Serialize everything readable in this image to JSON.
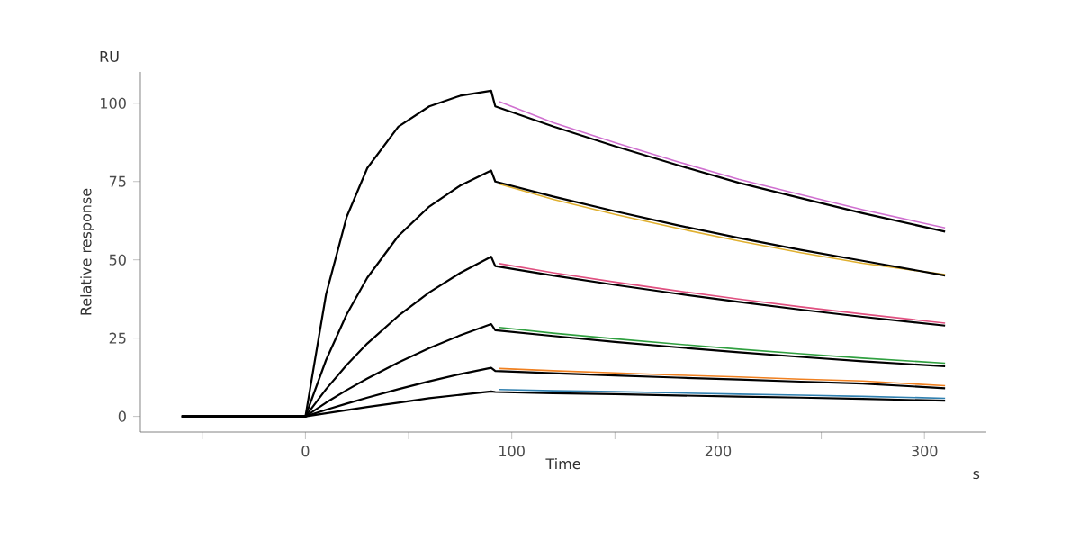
{
  "chart_data": {
    "type": "line",
    "xlabel": "Time",
    "ylabel": "Relative response",
    "annotations": [
      "RU",
      "s"
    ],
    "xlim": [
      -80,
      330
    ],
    "ylim": [
      -5,
      110
    ],
    "xticks": [
      {
        "value": -50,
        "label": null
      },
      0,
      {
        "value": 50,
        "label": null
      },
      100,
      {
        "value": 150,
        "label": null
      },
      200,
      {
        "value": 250,
        "label": null
      },
      300
    ],
    "yticks": [
      0,
      25,
      50,
      75,
      100
    ],
    "grid": false,
    "marker": "none",
    "line_style": "solid",
    "series": [
      {
        "color": "#d070d0",
        "x": [
          94,
          120,
          150,
          180,
          210,
          240,
          270,
          310
        ],
        "values": [
          100.5,
          93.8,
          87.4,
          81.4,
          75.7,
          70.8,
          66,
          60.2
        ]
      },
      {
        "color": "#e0b030",
        "x": [
          94,
          120,
          150,
          180,
          210,
          240,
          270,
          310
        ],
        "values": [
          74.2,
          69.3,
          64.5,
          60.1,
          56,
          52.3,
          48.9,
          45.3
        ]
      },
      {
        "color": "#e05080",
        "x": [
          94,
          120,
          150,
          180,
          210,
          240,
          270,
          310
        ],
        "values": [
          48.8,
          45.9,
          42.9,
          40.1,
          37.5,
          35,
          32.7,
          29.8
        ]
      },
      {
        "color": "#30a040",
        "x": [
          94,
          120,
          150,
          180,
          210,
          240,
          270,
          310
        ],
        "values": [
          28.4,
          26.6,
          24.8,
          23.1,
          21.5,
          20,
          18.6,
          17
        ]
      },
      {
        "color": "#f08020",
        "x": [
          94,
          120,
          150,
          180,
          210,
          240,
          270,
          310
        ],
        "values": [
          15.3,
          14.6,
          13.9,
          13.2,
          12.6,
          11.9,
          11.3,
          9.8
        ]
      },
      {
        "color": "#3080b0",
        "x": [
          94,
          120,
          150,
          180,
          210,
          240,
          270,
          310
        ],
        "values": [
          8.6,
          8.2,
          7.9,
          7.5,
          7.1,
          6.8,
          6.4,
          5.8
        ]
      },
      {
        "color": "#000000",
        "x": [
          -60,
          0,
          10,
          20,
          30,
          45,
          60,
          75,
          90,
          92,
          120,
          150,
          180,
          210,
          240,
          270,
          310
        ],
        "values": [
          0,
          0,
          39,
          63.7,
          79.3,
          92.5,
          99,
          102.4,
          104,
          99,
          92.6,
          86.3,
          80.3,
          74.6,
          69.7,
          64.9,
          59
        ]
      },
      {
        "color": "#000000",
        "x": [
          -60,
          0,
          10,
          20,
          30,
          45,
          60,
          75,
          90,
          92,
          120,
          150,
          180,
          210,
          240,
          270,
          310
        ],
        "values": [
          0,
          0,
          18,
          32.6,
          44.3,
          57.6,
          67,
          73.7,
          78.5,
          75,
          70.2,
          65.5,
          61.1,
          57,
          53.2,
          49.7,
          45
        ]
      },
      {
        "color": "#000000",
        "x": [
          -60,
          0,
          10,
          20,
          30,
          45,
          60,
          75,
          90,
          92,
          120,
          150,
          180,
          210,
          240,
          270,
          310
        ],
        "values": [
          0,
          0,
          8.7,
          16.4,
          23.3,
          32.1,
          39.6,
          45.8,
          51,
          48,
          45,
          42,
          39.2,
          36.6,
          34.1,
          31.8,
          29
        ]
      },
      {
        "color": "#000000",
        "x": [
          -60,
          0,
          10,
          20,
          30,
          45,
          60,
          75,
          90,
          92,
          120,
          150,
          180,
          210,
          240,
          270,
          310
        ],
        "values": [
          0,
          0,
          4.4,
          8.4,
          12.1,
          17.2,
          21.8,
          25.9,
          29.5,
          27.5,
          25.7,
          23.8,
          22.1,
          20.5,
          19,
          17.6,
          16
        ]
      },
      {
        "color": "#000000",
        "x": [
          -60,
          0,
          10,
          20,
          30,
          45,
          60,
          75,
          90,
          92,
          120,
          150,
          180,
          210,
          240,
          270,
          310
        ],
        "values": [
          0,
          0,
          2.1,
          4.1,
          6,
          8.7,
          11.2,
          13.5,
          15.5,
          14.5,
          13.8,
          13.1,
          12.4,
          11.8,
          11.1,
          10.5,
          9
        ]
      },
      {
        "color": "#000000",
        "x": [
          -60,
          0,
          10,
          20,
          30,
          45,
          60,
          75,
          90,
          92,
          120,
          150,
          180,
          210,
          240,
          270,
          310
        ],
        "values": [
          0,
          0,
          1,
          2,
          3,
          4.4,
          5.8,
          6.9,
          8,
          7.8,
          7.4,
          7.1,
          6.7,
          6.3,
          6,
          5.6,
          5
        ]
      }
    ]
  }
}
